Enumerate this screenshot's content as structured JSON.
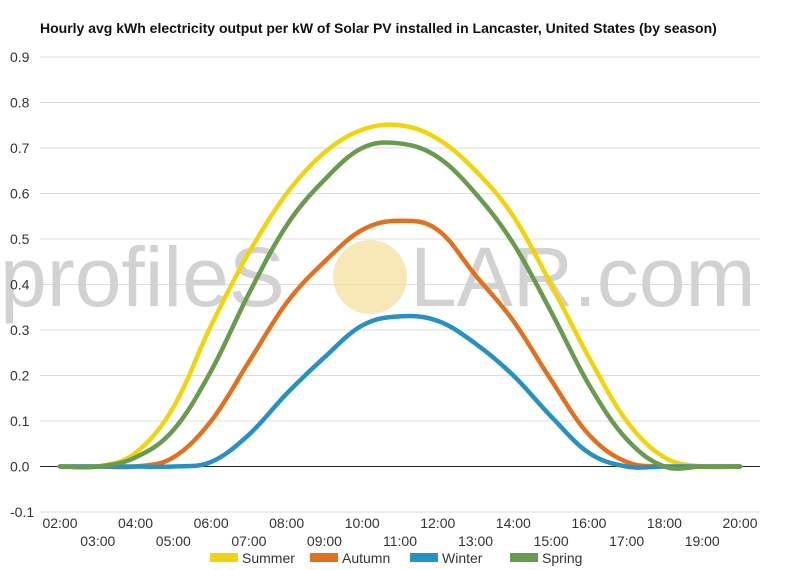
{
  "chart_data": {
    "type": "line",
    "title": "Hourly avg kWh electricity output per kW of Solar PV installed in Lancaster, United States (by season)",
    "xlabel": "",
    "ylabel": "",
    "ylim": [
      -0.1,
      0.9
    ],
    "yticks": [
      "0.9",
      "0.8",
      "0.7",
      "0.6",
      "0.5",
      "0.4",
      "0.3",
      "0.2",
      "0.1",
      "0.0",
      "-0.1"
    ],
    "ytick_values": [
      0.9,
      0.8,
      0.7,
      0.6,
      0.5,
      0.4,
      0.3,
      0.2,
      0.1,
      0.0,
      -0.1
    ],
    "x": [
      "02:00",
      "03:00",
      "04:00",
      "05:00",
      "06:00",
      "07:00",
      "08:00",
      "09:00",
      "10:00",
      "11:00",
      "12:00",
      "13:00",
      "14:00",
      "15:00",
      "16:00",
      "17:00",
      "18:00",
      "19:00",
      "20:00"
    ],
    "grid": true,
    "legend_position": "bottom",
    "series": [
      {
        "name": "Summer",
        "color": "#f2d40c",
        "values": [
          0,
          0,
          0.03,
          0.13,
          0.31,
          0.47,
          0.6,
          0.69,
          0.74,
          0.75,
          0.72,
          0.65,
          0.55,
          0.4,
          0.24,
          0.1,
          0.02,
          0,
          0
        ]
      },
      {
        "name": "Autumn",
        "color": "#e0721f",
        "values": [
          0,
          0,
          0,
          0.02,
          0.1,
          0.23,
          0.36,
          0.45,
          0.52,
          0.54,
          0.52,
          0.42,
          0.32,
          0.19,
          0.07,
          0.01,
          0,
          0,
          0
        ]
      },
      {
        "name": "Winter",
        "color": "#2790c4",
        "values": [
          0,
          0,
          0,
          0,
          0.01,
          0.07,
          0.16,
          0.24,
          0.31,
          0.33,
          0.32,
          0.27,
          0.2,
          0.11,
          0.03,
          0,
          0,
          0,
          0
        ]
      },
      {
        "name": "Spring",
        "color": "#6a9a4e",
        "values": [
          0,
          0,
          0.02,
          0.08,
          0.21,
          0.38,
          0.53,
          0.63,
          0.7,
          0.71,
          0.68,
          0.6,
          0.49,
          0.34,
          0.18,
          0.06,
          0,
          0,
          0
        ]
      }
    ]
  },
  "watermark": {
    "left_text": "profileS",
    "right_text": "LAR.com",
    "sun_color": "#f5e0a0"
  }
}
